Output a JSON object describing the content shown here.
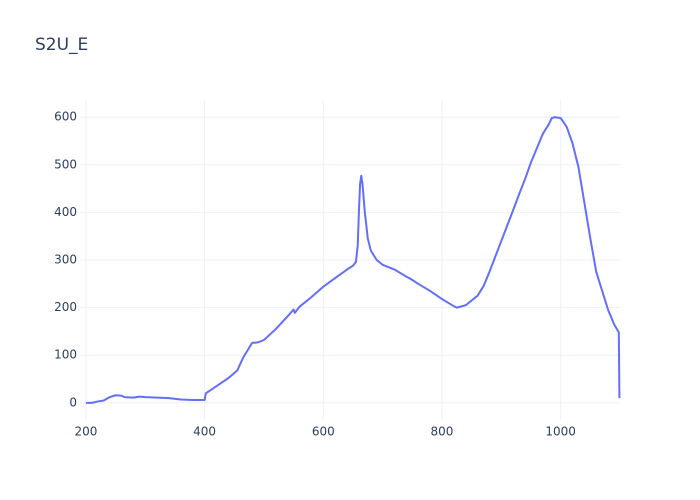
{
  "chart_data": {
    "type": "line",
    "title": "S2U_E",
    "x": [
      200,
      210,
      220,
      230,
      240,
      250,
      260,
      265,
      280,
      290,
      300,
      320,
      340,
      360,
      380,
      400,
      402,
      420,
      440,
      455,
      465,
      480,
      490,
      500,
      520,
      540,
      550,
      552,
      560,
      580,
      600,
      620,
      640,
      650,
      655,
      658,
      660,
      662,
      664,
      666,
      670,
      675,
      680,
      690,
      700,
      720,
      740,
      745,
      760,
      780,
      800,
      820,
      825,
      840,
      860,
      870,
      880,
      900,
      920,
      930,
      940,
      950,
      960,
      970,
      980,
      985,
      990,
      1000,
      1010,
      1020,
      1030,
      1040,
      1050,
      1060,
      1070,
      1080,
      1090,
      1098,
      1099
    ],
    "series": [
      {
        "color": "#636efa",
        "values": [
          0,
          0,
          3,
          5,
          12,
          16,
          15,
          12,
          11,
          13,
          12,
          11,
          10,
          7,
          6,
          6,
          20,
          35,
          52,
          68,
          95,
          126,
          127,
          132,
          155,
          182,
          196,
          189,
          202,
          222,
          244,
          262,
          280,
          288,
          296,
          330,
          400,
          460,
          477,
          460,
          400,
          345,
          320,
          300,
          290,
          280,
          265,
          262,
          250,
          235,
          218,
          203,
          200,
          205,
          225,
          245,
          275,
          340,
          405,
          438,
          470,
          505,
          535,
          565,
          585,
          598,
          600,
          598,
          580,
          545,
          495,
          420,
          345,
          275,
          235,
          195,
          165,
          148,
          10
        ]
      }
    ],
    "xlim": [
      190,
      1100
    ],
    "ylim": [
      -36,
      636
    ],
    "xticks": [
      200,
      400,
      600,
      800,
      1000
    ],
    "yticks": [
      0,
      100,
      200,
      300,
      400,
      500,
      600
    ],
    "grid": true
  }
}
